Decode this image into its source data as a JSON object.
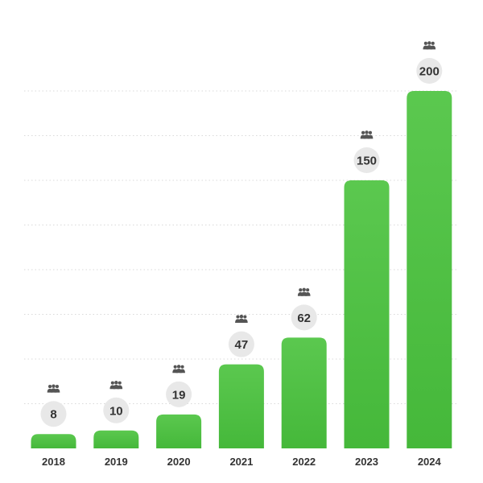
{
  "chart_data": {
    "type": "bar",
    "title": "",
    "xlabel": "",
    "ylabel": "",
    "categories": [
      "2018",
      "2019",
      "2020",
      "2021",
      "2022",
      "2023",
      "2024"
    ],
    "values": [
      8,
      10,
      19,
      47,
      62,
      150,
      200
    ],
    "ylim": [
      0,
      200
    ],
    "grid": true,
    "legend": "none",
    "data_label_icon": "people-group-icon",
    "colors": {
      "bar_top": "#5bc84f",
      "bar_bottom": "#45b83a",
      "grid": "#d9d9d9",
      "label_bubble": "#e8e8e8",
      "text": "#333333",
      "icon": "#555555"
    }
  }
}
